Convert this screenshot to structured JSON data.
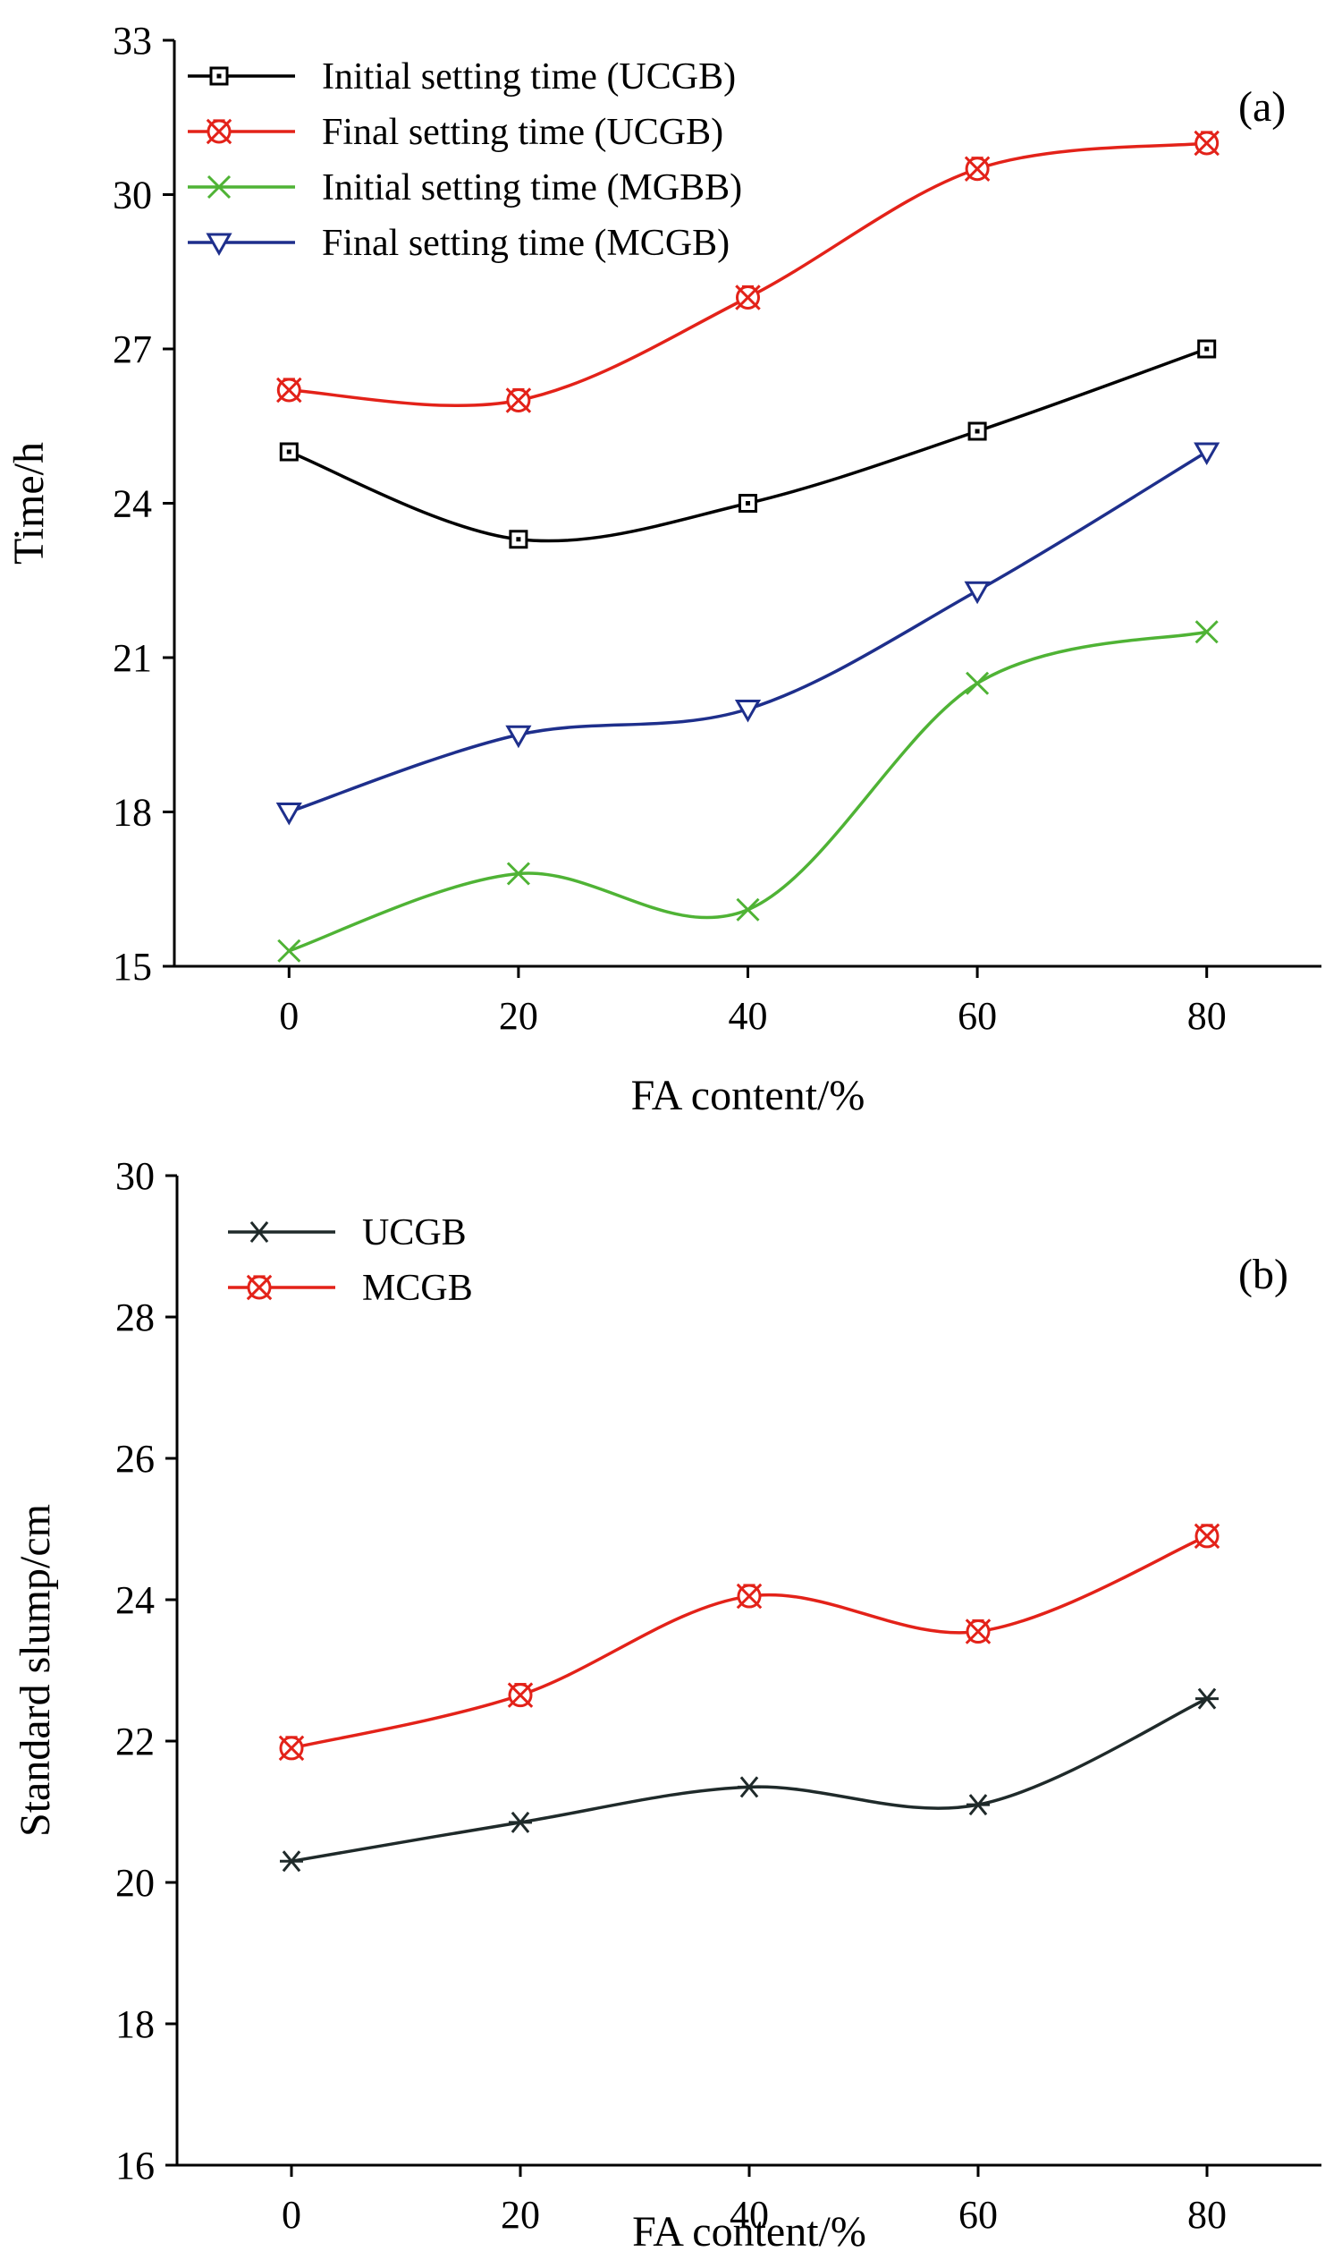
{
  "chart_data": [
    {
      "type": "line",
      "panel_label": "(a)",
      "xlabel": "FA content/%",
      "ylabel": "Time/h",
      "x": [
        0,
        20,
        40,
        60,
        80
      ],
      "xlim": [
        -10,
        90
      ],
      "ylim": [
        15,
        33
      ],
      "xticks": [
        0,
        20,
        40,
        60,
        80
      ],
      "yticks": [
        15,
        18,
        21,
        24,
        27,
        30,
        33
      ],
      "grid": false,
      "legend_position": "top-left",
      "series": [
        {
          "name": "Initial setting time (UCGB)",
          "values": [
            25.0,
            23.3,
            24.0,
            25.4,
            27.0
          ],
          "color": "#000000",
          "marker": "square"
        },
        {
          "name": "Final setting time (UCGB)",
          "values": [
            26.2,
            26.0,
            28.0,
            30.5,
            31.0
          ],
          "color": "#e32219",
          "marker": "crossed-circle"
        },
        {
          "name": "Initial setting time (MGBB)",
          "values": [
            15.3,
            16.8,
            16.1,
            20.5,
            21.5
          ],
          "color": "#4fb335",
          "marker": "x"
        },
        {
          "name": "Final setting time (MCGB)",
          "values": [
            18.0,
            19.5,
            20.0,
            22.3,
            25.0
          ],
          "color": "#1e2f8c",
          "marker": "triangle-down"
        }
      ]
    },
    {
      "type": "line",
      "panel_label": "(b)",
      "xlabel": "FA content/%",
      "ylabel": "Standard  slump/cm",
      "x": [
        0,
        20,
        40,
        60,
        80
      ],
      "xlim": [
        -10,
        90
      ],
      "ylim": [
        16,
        30
      ],
      "xticks": [
        0,
        20,
        40,
        60,
        80
      ],
      "yticks": [
        16,
        18,
        20,
        22,
        24,
        26,
        28,
        30
      ],
      "grid": false,
      "legend_position": "top-left",
      "series": [
        {
          "name": "UCGB",
          "values": [
            20.3,
            20.85,
            21.35,
            21.1,
            22.6
          ],
          "color": "#1f2a2a",
          "marker": "asterisk"
        },
        {
          "name": "MCGB",
          "values": [
            21.9,
            22.65,
            24.05,
            23.55,
            24.9
          ],
          "color": "#e32219",
          "marker": "crossed-circle"
        }
      ]
    }
  ]
}
